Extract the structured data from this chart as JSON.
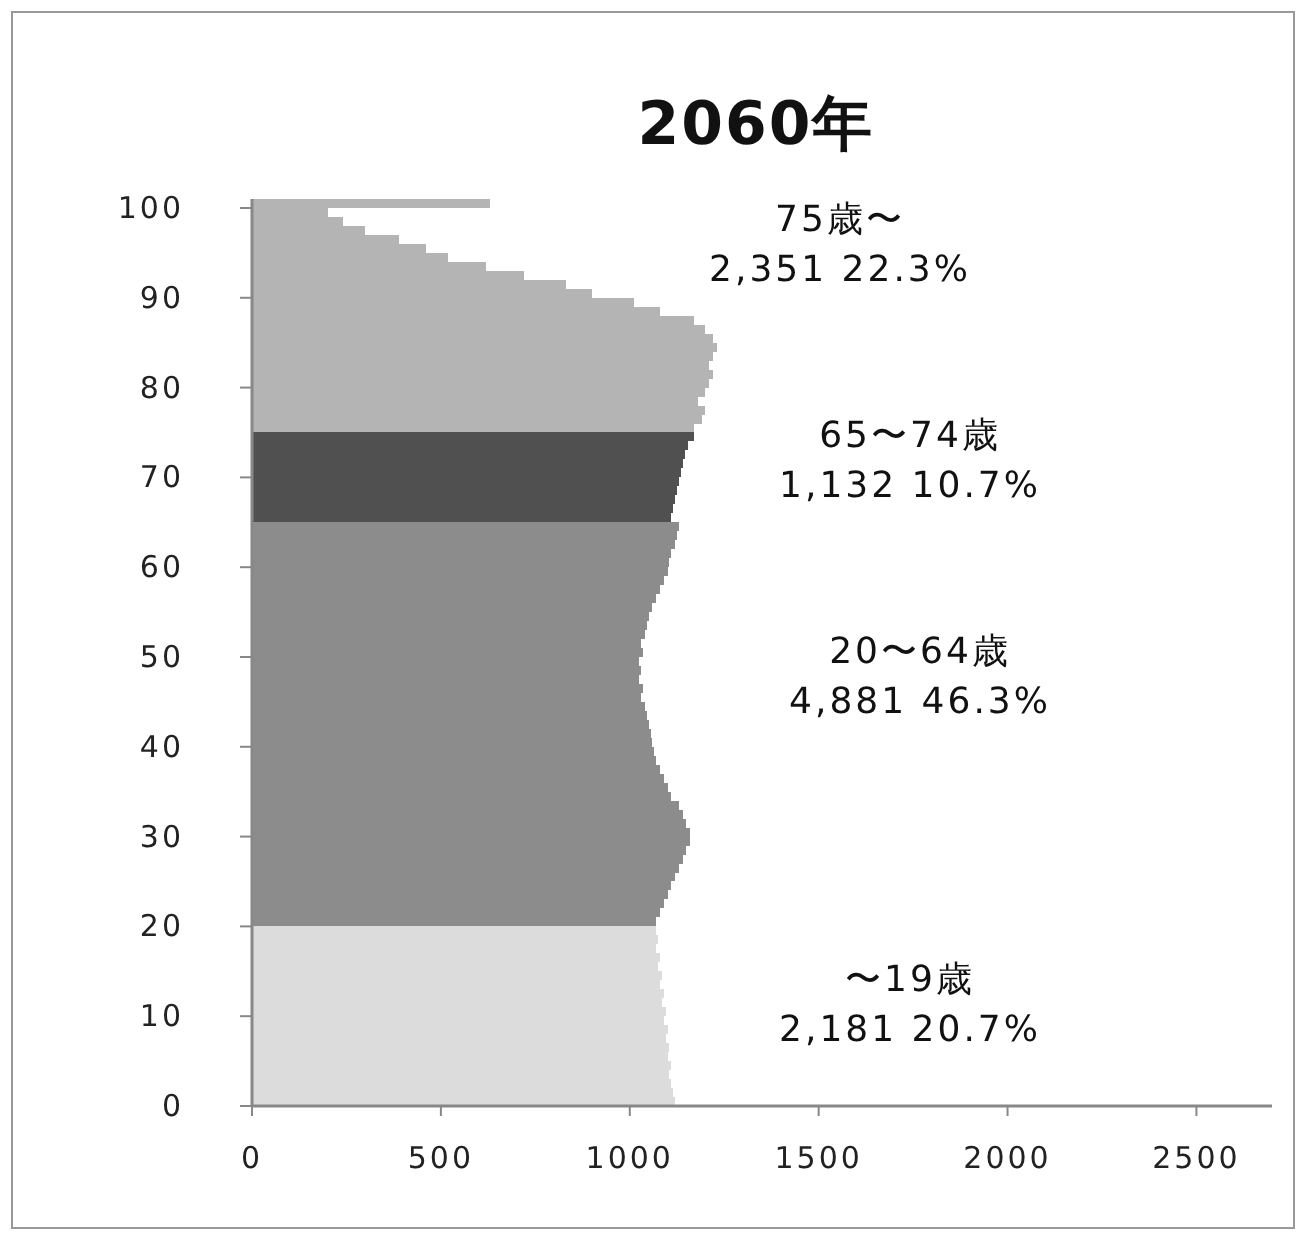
{
  "chart_data": {
    "type": "bar",
    "orientation": "horizontal",
    "title": "2060年",
    "series": [
      {
        "color": "#dcdcdc",
        "x": [
          0,
          1,
          2,
          3,
          4,
          5,
          6,
          7,
          8,
          9,
          10,
          11,
          12,
          13,
          14,
          15,
          16,
          17,
          18,
          19
        ],
        "values": [
          1120,
          1115,
          1110,
          1105,
          1110,
          1100,
          1105,
          1095,
          1100,
          1090,
          1095,
          1085,
          1090,
          1080,
          1085,
          1075,
          1080,
          1070,
          1075,
          1070
        ]
      },
      {
        "color": "#8c8c8c",
        "x": [
          20,
          21,
          22,
          23,
          24,
          25,
          26,
          27,
          28,
          29,
          30,
          31,
          32,
          33,
          34,
          35,
          36,
          37,
          38,
          39,
          40,
          41,
          42,
          43,
          44,
          45,
          46,
          47,
          48,
          49,
          50,
          51,
          52,
          53,
          54,
          55,
          56,
          57,
          58,
          59,
          60,
          61,
          62,
          63,
          64
        ],
        "values": [
          1070,
          1080,
          1090,
          1100,
          1110,
          1120,
          1130,
          1140,
          1150,
          1160,
          1160,
          1150,
          1140,
          1130,
          1110,
          1100,
          1090,
          1080,
          1070,
          1065,
          1060,
          1055,
          1050,
          1045,
          1040,
          1030,
          1035,
          1025,
          1030,
          1025,
          1035,
          1030,
          1040,
          1045,
          1050,
          1060,
          1070,
          1080,
          1090,
          1100,
          1105,
          1110,
          1120,
          1125,
          1130
        ]
      },
      {
        "color": "#505050",
        "x": [
          65,
          66,
          67,
          68,
          69,
          70,
          71,
          72,
          73,
          74
        ],
        "values": [
          1110,
          1115,
          1120,
          1125,
          1130,
          1135,
          1140,
          1145,
          1155,
          1170
        ]
      },
      {
        "color": "#b4b4b4",
        "x": [
          75,
          76,
          77,
          78,
          79,
          80,
          81,
          82,
          83,
          84,
          85,
          86,
          87,
          88,
          89,
          90,
          91,
          92,
          93,
          94,
          95,
          96,
          97,
          98,
          99,
          100
        ],
        "values": [
          1170,
          1190,
          1200,
          1180,
          1200,
          1210,
          1220,
          1210,
          1220,
          1230,
          1220,
          1200,
          1170,
          1080,
          1010,
          900,
          830,
          720,
          620,
          520,
          460,
          390,
          300,
          240,
          200,
          630
        ]
      }
    ],
    "xlim": [
      0,
      2700
    ],
    "xticks": [
      0,
      500,
      1000,
      1500,
      2000,
      2500
    ],
    "ylim": [
      0,
      101
    ],
    "yticks": [
      0,
      10,
      20,
      30,
      40,
      50,
      60,
      70,
      80,
      90,
      100
    ],
    "annotations": [
      "75歳〜\n2,351  22.3%",
      "65〜74歳\n1,132  10.7%",
      "20〜64歳\n4,881  46.3%",
      "〜19歳\n2,181  20.7%"
    ]
  }
}
